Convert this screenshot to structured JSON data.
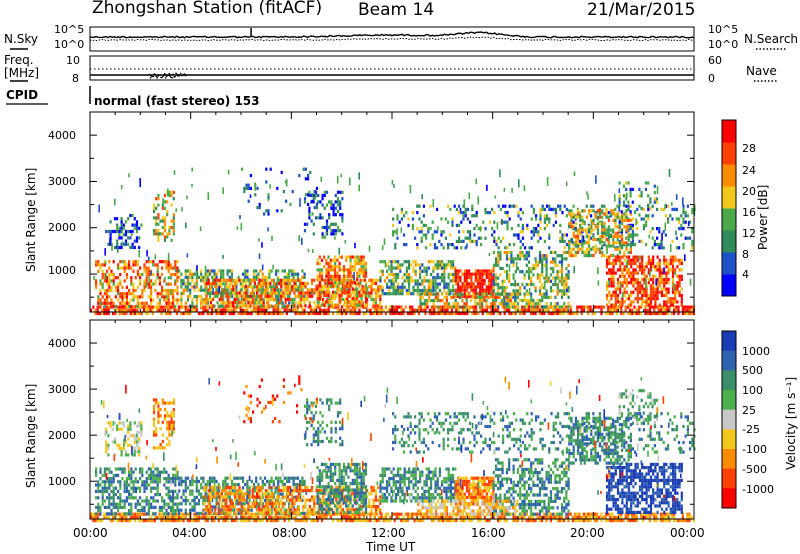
{
  "header": {
    "station": "Zhongshan Station (fitACF)",
    "beam": "Beam 14",
    "date": "21/Mar/2015"
  },
  "top_panel": {
    "left_label": "N.Sky",
    "right_label": "N.Search",
    "left_ticks": [
      "10^5",
      "10^0"
    ],
    "right_ticks": [
      "10^5",
      "10^0"
    ]
  },
  "freq_panel": {
    "left_label_line1": "Freq.",
    "left_label_line2": "[MHz]",
    "left_ticks": [
      "10",
      "8"
    ],
    "right_label": "Nave",
    "right_ticks": [
      "60",
      "0"
    ]
  },
  "cpid": {
    "label": "CPID",
    "value": "normal (fast stereo) 153"
  },
  "x_axis": {
    "title": "Time UT",
    "ticks": [
      "00:00",
      "04:00",
      "08:00",
      "12:00",
      "16:00",
      "20:00",
      "00:00"
    ]
  },
  "power_panel": {
    "ylabel": "Slant Range [km]",
    "yticks": [
      "1000",
      "2000",
      "3000",
      "4000"
    ],
    "colorbar_label": "Power [dB]",
    "colorbar_ticks": [
      "4",
      "8",
      "12",
      "16",
      "20",
      "24",
      "28"
    ],
    "colors": [
      "#0000ff",
      "#1e50c8",
      "#2f8b5a",
      "#4aa84a",
      "#f2c81e",
      "#ff8c00",
      "#ff4000",
      "#ff0000"
    ]
  },
  "velocity_panel": {
    "ylabel": "Slant Range [km]",
    "yticks": [
      "1000",
      "2000",
      "3000",
      "4000"
    ],
    "colorbar_label": "Velocity [m s⁻¹]",
    "colorbar_ticks": [
      "1000",
      "500",
      "100",
      "25",
      "-25",
      "-100",
      "-500",
      "-1000"
    ],
    "colors": [
      "#1a3cb4",
      "#2f62b0",
      "#3a8f6a",
      "#4caf4c",
      "#c8c8c8",
      "#f2c81e",
      "#ff8c00",
      "#ff4000",
      "#ff0000"
    ]
  },
  "chart_data": {
    "type": "heatmap",
    "x_range_hours": [
      0,
      24
    ],
    "y_range_km": [
      180,
      4500
    ],
    "time_ticks_hours": [
      0,
      4,
      8,
      12,
      16,
      20,
      24
    ],
    "power_db_range": [
      0,
      32
    ],
    "velocity_levels_ms": [
      1000,
      500,
      100,
      25,
      -25,
      -100,
      -500,
      -1000
    ],
    "frequency_mhz_range": [
      8,
      10
    ],
    "nave_range": [
      0,
      60
    ],
    "cpid": 153
  }
}
